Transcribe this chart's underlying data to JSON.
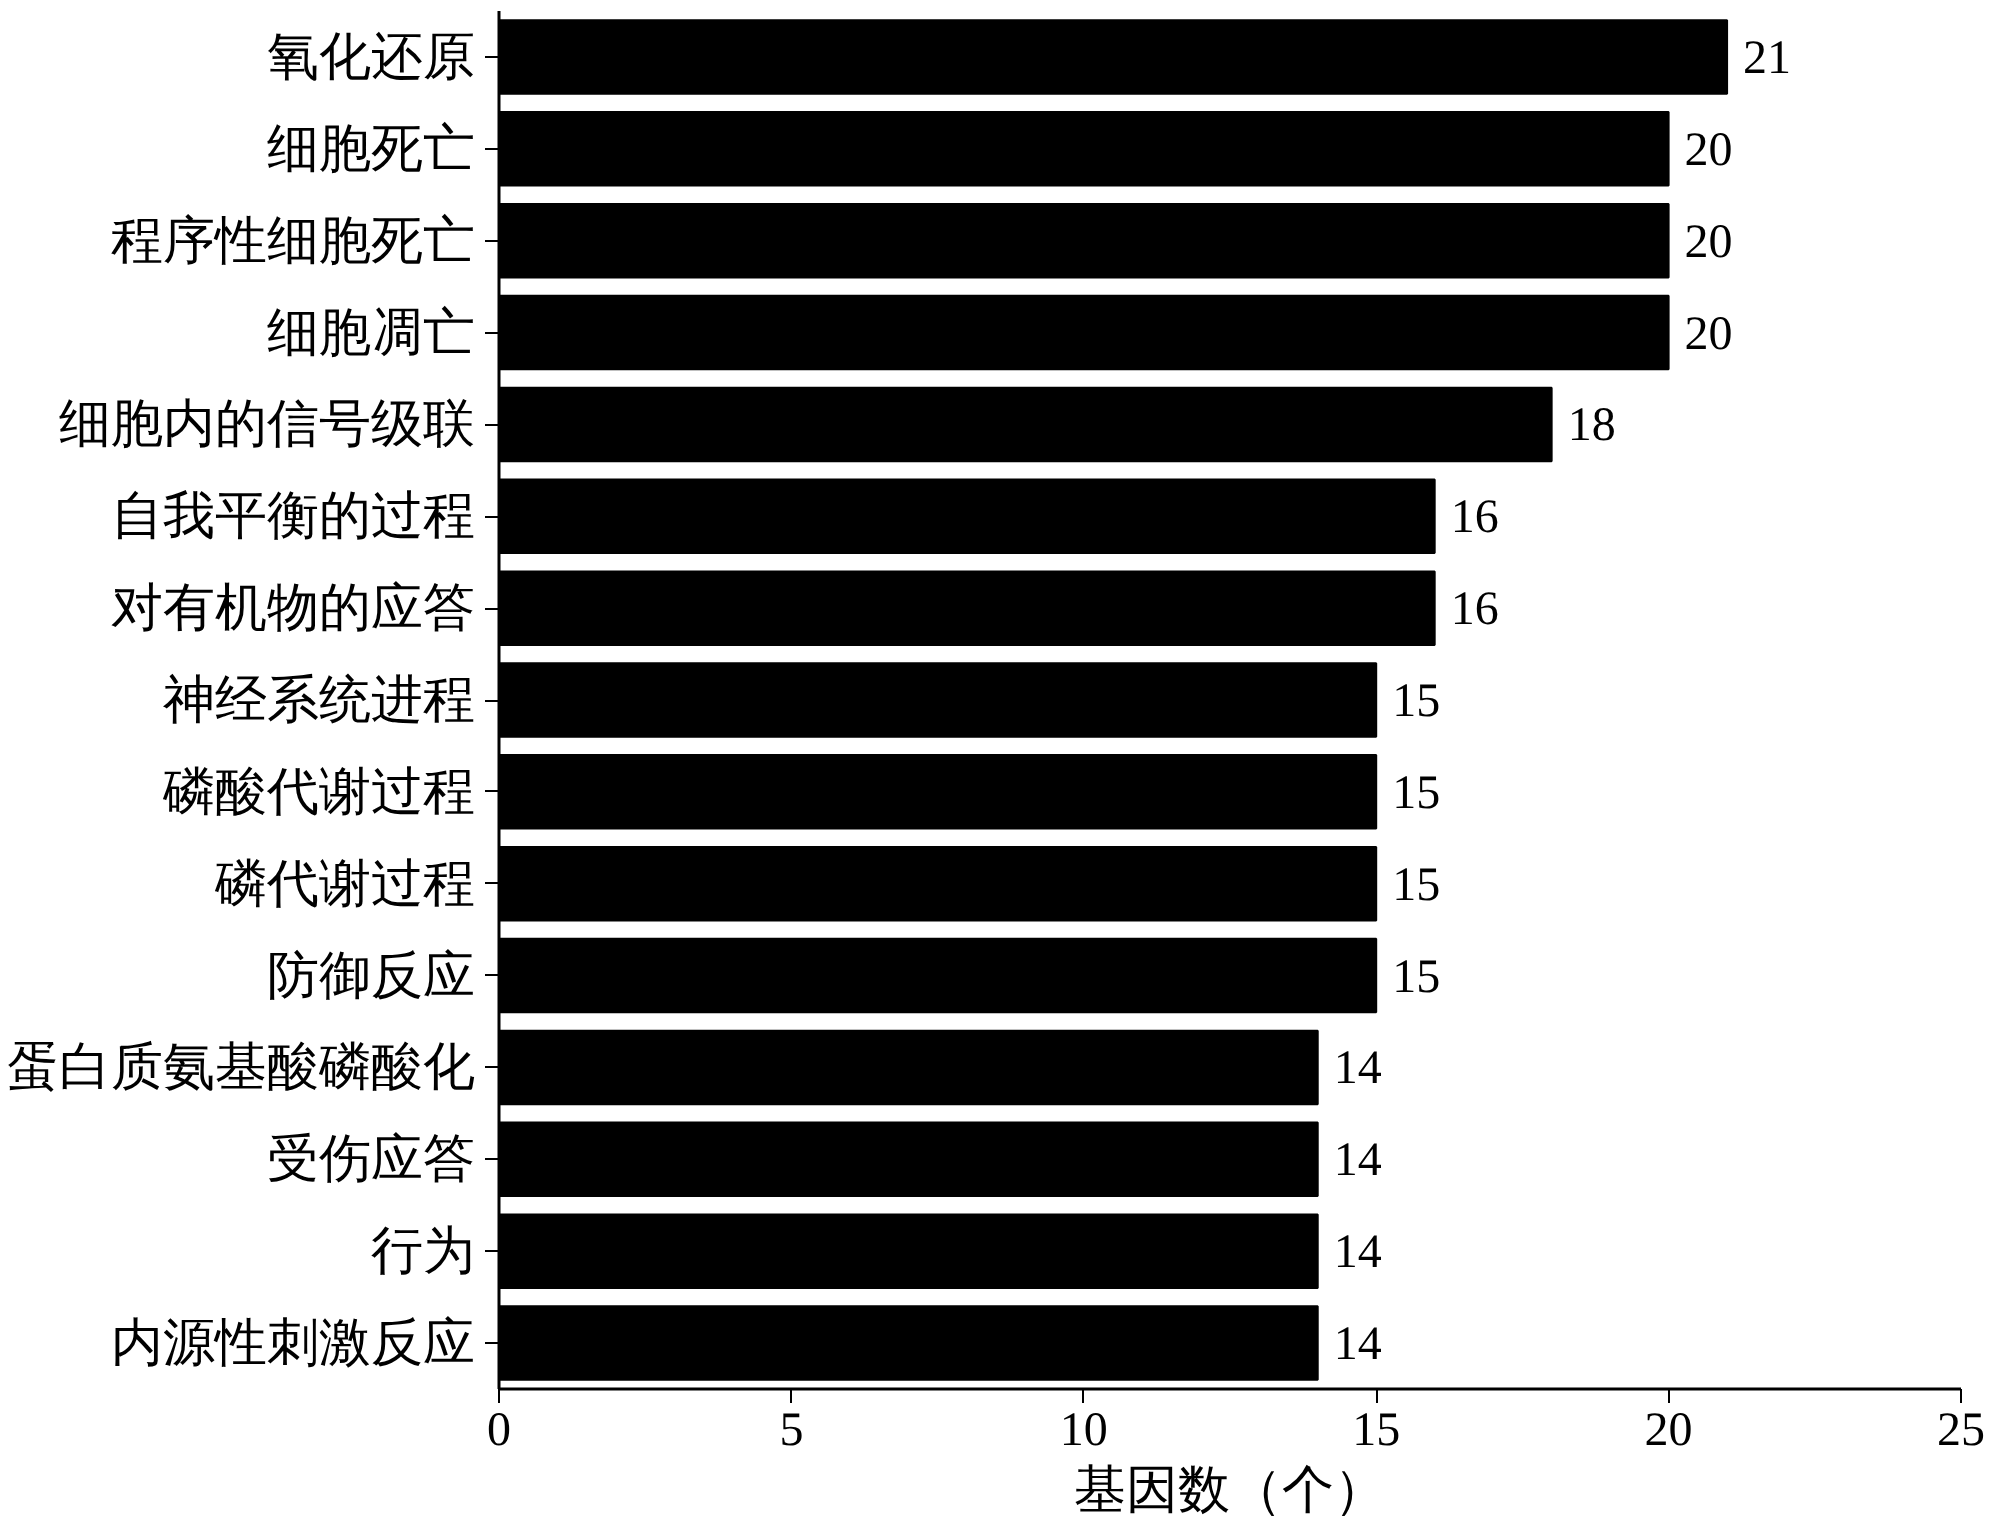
{
  "chart_data": {
    "type": "bar",
    "orientation": "horizontal",
    "xlabel": "基因数（个）",
    "categories": [
      "氧化还原",
      "细胞死亡",
      "程序性细胞死亡",
      "细胞凋亡",
      "细胞内的信号级联",
      "自我平衡的过程",
      "对有机物的应答",
      "神经系统进程",
      "磷酸代谢过程",
      "磷代谢过程",
      "防御反应",
      "蛋白质氨基酸磷酸化",
      "受伤应答",
      "行为",
      "内源性刺激反应"
    ],
    "values": [
      21,
      20,
      20,
      20,
      18,
      16,
      16,
      15,
      15,
      15,
      15,
      14,
      14,
      14,
      14
    ],
    "color": "#000000",
    "xlim": [
      0,
      25
    ],
    "xticks": [
      0,
      5,
      10,
      15,
      20,
      25
    ],
    "data_labels": true,
    "grid": false
  }
}
